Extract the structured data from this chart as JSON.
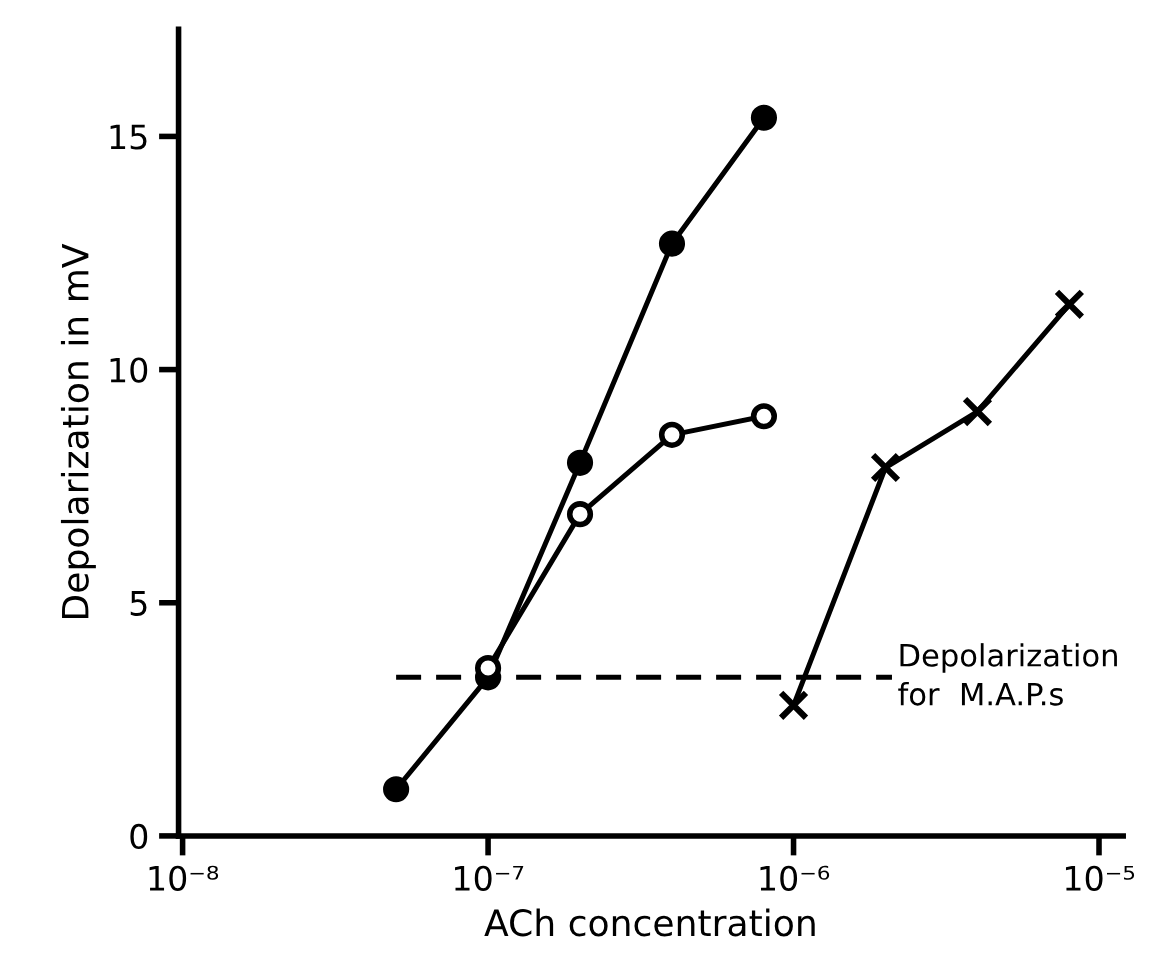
{
  "chart_data": {
    "type": "line",
    "xlabel": "ACh concentration",
    "ylabel": "Depolarization in mV",
    "log": "x",
    "xlim": [
      9.7e-09,
      1.2e-05
    ],
    "ylim": [
      0,
      17.3
    ],
    "xticks": [
      {
        "value": 1e-08,
        "label": "10⁻⁸"
      },
      {
        "value": 1e-07,
        "label": "10⁻⁷"
      },
      {
        "value": 1e-06,
        "label": "10⁻⁶"
      },
      {
        "value": 1e-05,
        "label": "10⁻⁵"
      }
    ],
    "yticks": [
      0,
      5,
      10,
      15
    ],
    "grid": false,
    "legend": false,
    "series": [
      {
        "color": "#000000",
        "marker": "circle",
        "line_style": "solid",
        "x": [
          5e-08,
          1e-07,
          2e-07,
          4e-07,
          8e-07
        ],
        "values": [
          1.0,
          3.4,
          8.0,
          12.7,
          15.4
        ]
      },
      {
        "color": "#ffffff",
        "marker": "circle",
        "line_style": "solid",
        "x": [
          1e-07,
          2e-07,
          4e-07,
          8e-07
        ],
        "values": [
          3.6,
          6.9,
          8.6,
          9.0
        ]
      },
      {
        "color": "#000000",
        "marker": "cross",
        "line_style": "solid",
        "x": [
          1e-06,
          2e-06,
          4e-06,
          8e-06
        ],
        "values": [
          2.8,
          7.9,
          9.1,
          11.4
        ]
      },
      {
        "color": "#000000",
        "marker": "none",
        "line_style": "dashed",
        "x": [
          5e-08,
          2.1e-06
        ],
        "values": [
          3.4,
          3.4
        ]
      }
    ],
    "annotations": [
      {
        "text": "Depolarization\nfor  M.A.P.s",
        "x": 2.1e-06,
        "y": 3.4
      }
    ]
  }
}
